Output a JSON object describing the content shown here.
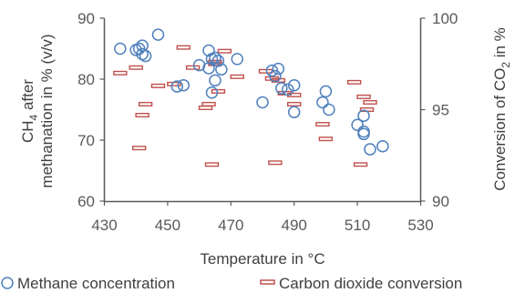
{
  "chart_data": {
    "type": "scatter",
    "title": "",
    "xlabel": "Temperature in °C",
    "ylabel_line1_parts": [
      "CH",
      "4",
      " after"
    ],
    "ylabel_line2": "methanation in % (v/v)",
    "y2label_parts": [
      "Conversion of CO",
      "2",
      " in %"
    ],
    "xlim": [
      430,
      530
    ],
    "ylim": [
      60,
      90
    ],
    "y2lim": [
      90,
      100
    ],
    "xticks": [
      430,
      450,
      470,
      490,
      510,
      530
    ],
    "yticks": [
      60,
      70,
      80,
      90
    ],
    "y2ticks": [
      90,
      95,
      100
    ],
    "grid": false,
    "legend_position": "bottom",
    "colors": {
      "methane": "#4f81bd",
      "co2": "#c0504d",
      "axis": "#595959"
    },
    "series": [
      {
        "name": "Methane concentration",
        "axis": "left",
        "marker": "circle",
        "x": [
          435,
          440,
          441,
          442,
          442,
          443,
          447,
          453,
          455,
          460,
          463,
          463,
          464,
          464,
          465,
          465,
          466,
          467,
          472,
          480,
          483,
          484,
          485,
          486,
          488,
          490,
          490,
          499,
          500,
          501,
          510,
          512,
          512,
          512,
          514,
          518
        ],
        "y": [
          85,
          84.8,
          85,
          84.1,
          85.5,
          83.8,
          87.3,
          78.8,
          79,
          82.3,
          81.8,
          84.7,
          83.3,
          77.8,
          79.8,
          83.5,
          83,
          81.6,
          83.3,
          76.2,
          81.4,
          80.5,
          81.7,
          78.5,
          78.3,
          79,
          74.6,
          76.2,
          78,
          75,
          72.5,
          74,
          71.4,
          71,
          68.5,
          69
        ]
      },
      {
        "name": "Carbon dioxide conversion",
        "axis": "right",
        "marker": "dash",
        "x": [
          435,
          440,
          441,
          442,
          443,
          447,
          452,
          455,
          458,
          462,
          463,
          464,
          465,
          465,
          466,
          468,
          472,
          481,
          483,
          484,
          485,
          487,
          490,
          490,
          499,
          500,
          509,
          511,
          512,
          513,
          514
        ],
        "y": [
          97,
          97.3,
          92.9,
          94.7,
          95.3,
          96.3,
          96.4,
          98.4,
          97.3,
          95.1,
          95.3,
          92.0,
          97.6,
          97.5,
          96.0,
          98.2,
          96.8,
          97.1,
          96.7,
          92.1,
          96.6,
          95.9,
          95.8,
          95.3,
          94.2,
          93.4,
          96.5,
          92,
          95.7,
          95,
          95.4
        ]
      }
    ]
  }
}
